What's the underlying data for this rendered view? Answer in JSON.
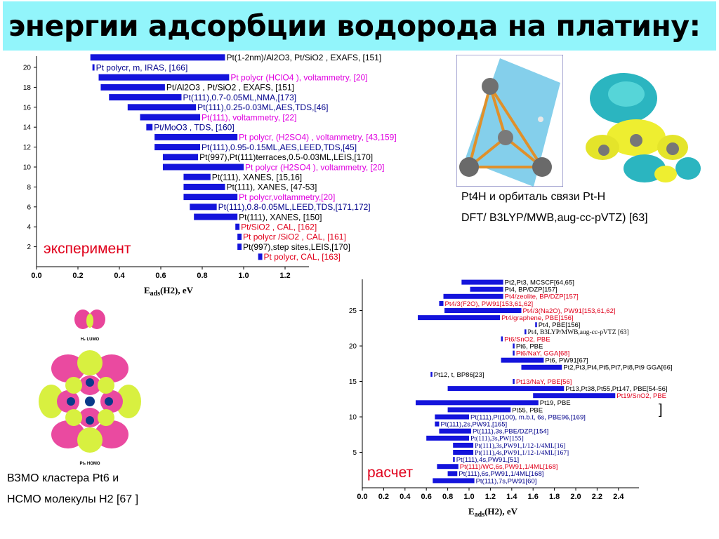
{
  "title": "энергии адсорбции водорода на платину:",
  "colors": {
    "bar": "#1414dc",
    "black": "#000000",
    "magenta": "#e000e0",
    "navy": "#00008b",
    "red": "#e0001b",
    "title_bg": "#92f5fb"
  },
  "exp_label": "эксперимент",
  "calc_label": "расчет",
  "pt4h_caption": {
    "line1": "Pt4H и орбиталь связи Pt-H",
    "line2": "DFT/ B3LYP/MWB,aug-cc-pVTZ) [63]"
  },
  "pt6_caption": {
    "line1": "ВЗМО кластера Pt6 и",
    "line2": "НСМО молекулы H2 [67 ]"
  },
  "orbital_labels": {
    "h2": "H₂ LUMO",
    "pt6": "Pt₆ HOMO"
  },
  "chart_data": [
    {
      "type": "bar",
      "orientation": "horizontal-range",
      "xlabel": "Eads(H2), eV",
      "xlim": [
        0.0,
        1.35
      ],
      "xticks": [
        "0.0",
        "0.2",
        "0.4",
        "0.6",
        "0.8",
        "1.0",
        "1.2"
      ],
      "yticks": [
        "2",
        "4",
        "6",
        "8",
        "10",
        "12",
        "14",
        "16",
        "18",
        "20"
      ],
      "rows": [
        {
          "y": 21,
          "min": 0.26,
          "max": 0.91,
          "label": "Pt(1-2nm)/Al2O3, Pt/SiO2 , EXAFS, [151]",
          "color": "black"
        },
        {
          "y": 20,
          "min": 0.27,
          "max": 0.28,
          "label": "Pt polycr, m, IRAS, [166]",
          "color": "navy"
        },
        {
          "y": 19,
          "min": 0.3,
          "max": 0.93,
          "label": "Pt polycr (HClO4 ), voltammetry, [20]",
          "color": "magenta"
        },
        {
          "y": 18,
          "min": 0.31,
          "max": 0.62,
          "label": "Pt/Al2O3 , Pt/SiO2 , EXAFS, [151]",
          "color": "black"
        },
        {
          "y": 17,
          "min": 0.35,
          "max": 0.7,
          "label": "Pt(111),0.7-0.05ML,NMA,[173]",
          "color": "navy"
        },
        {
          "y": 16,
          "min": 0.44,
          "max": 0.77,
          "label": "Pt(111),0.25-0.03ML,AES,TDS,[46]",
          "color": "navy"
        },
        {
          "y": 15,
          "min": 0.5,
          "max": 0.79,
          "label": "Pt(111), voltammetry, [22]",
          "color": "magenta"
        },
        {
          "y": 14,
          "min": 0.53,
          "max": 0.56,
          "label": "Pt/MoO3 , TDS, [160]",
          "color": "navy"
        },
        {
          "y": 13,
          "min": 0.57,
          "max": 0.97,
          "label": "Pt polycr, (H2SO4) , voltammetry, [43,159]",
          "color": "magenta"
        },
        {
          "y": 12,
          "min": 0.57,
          "max": 0.79,
          "label": "Pt(111),0.95-0.15ML,AES,LEED,TDS,[45]",
          "color": "navy"
        },
        {
          "y": 11,
          "min": 0.61,
          "max": 0.78,
          "label": "Pt(997),Pt(111)terraces,0.5-0.03ML,LEIS,[170]",
          "color": "black"
        },
        {
          "y": 10,
          "min": 0.61,
          "max": 1.0,
          "label": "Pt polycr (H2SO4 ), voltammetry, [20]",
          "color": "magenta"
        },
        {
          "y": 9,
          "min": 0.71,
          "max": 0.84,
          "label": "Pt(111), XANES, [15,16]",
          "color": "black"
        },
        {
          "y": 8,
          "min": 0.71,
          "max": 0.91,
          "label": "Pt(111), XANES, [47-53]",
          "color": "black"
        },
        {
          "y": 7,
          "min": 0.71,
          "max": 0.97,
          "label": "Pt polycr,voltammetry,[20]",
          "color": "magenta"
        },
        {
          "y": 6,
          "min": 0.74,
          "max": 0.87,
          "label": "Pt(111),0.8-0.05ML,LEED,TDS,[171,172]",
          "color": "navy"
        },
        {
          "y": 5,
          "min": 0.76,
          "max": 0.97,
          "label": "Pt(111), XANES, [150]",
          "color": "black"
        },
        {
          "y": 4,
          "min": 0.96,
          "max": 0.98,
          "label": "Pt/SiO2 , CAL, [162]",
          "color": "red"
        },
        {
          "y": 3,
          "min": 0.97,
          "max": 0.99,
          "label": "Pt polycr /SiO2 , CAL, [161]",
          "color": "red"
        },
        {
          "y": 2,
          "min": 0.97,
          "max": 0.99,
          "label": "Pt(997),step sites,LEIS,[170]",
          "color": "black"
        },
        {
          "y": 1,
          "min": 1.07,
          "max": 1.09,
          "label": "Pt polycr, CAL, [163]",
          "color": "red"
        }
      ]
    },
    {
      "type": "bar",
      "orientation": "horizontal-range",
      "xlabel": "Eads(H2), eV",
      "xlim": [
        0.0,
        2.6
      ],
      "xticks": [
        "0.0",
        "0.2",
        "0.4",
        "0.6",
        "0.8",
        "1.0",
        "1.2",
        "1.4",
        "1.6",
        "1.8",
        "2.0",
        "2.2",
        "2.4"
      ],
      "yticks": [
        "5",
        "10",
        "15",
        "20",
        "25"
      ],
      "rows": [
        {
          "y": 29,
          "min": 0.93,
          "max": 1.32,
          "label": "Pt2,Pt3, MCSCF[64,65]",
          "color": "black",
          "font": "sans"
        },
        {
          "y": 28,
          "min": 1.01,
          "max": 1.32,
          "label": "Pt4, BP/DZP[157]",
          "color": "black",
          "font": "sans"
        },
        {
          "y": 27,
          "min": 0.76,
          "max": 1.32,
          "label": "Pt4/zeolite, BP/DZP[157]",
          "color": "red",
          "font": "sans"
        },
        {
          "y": 26,
          "min": 0.72,
          "max": 0.76,
          "label": "Pt4/3(F2O), PW91[153,61,62]",
          "color": "red",
          "font": "sans"
        },
        {
          "y": 25,
          "min": 0.77,
          "max": 1.49,
          "label": "Pt4/3(Na2O), PW91[153,61,62]",
          "color": "red",
          "font": "sans"
        },
        {
          "y": 24,
          "min": 0.52,
          "max": 1.29,
          "label": "Pt4/graphene, PBE[156]",
          "color": "red",
          "font": "sans"
        },
        {
          "y": 23,
          "min": 1.62,
          "max": 1.63,
          "label": "Pt4, PBE[156]",
          "color": "black",
          "font": "sans"
        },
        {
          "y": 22,
          "min": 1.52,
          "max": 1.53,
          "label": "Pt4, B3LYP/MWB,aug-cc-pVTZ [63]",
          "color": "black",
          "font": "serif"
        },
        {
          "y": 21,
          "min": 1.3,
          "max": 1.31,
          "label": "Pt6/SnO2, PBE",
          "color": "red",
          "font": "sans"
        },
        {
          "y": 20,
          "min": 1.41,
          "max": 1.42,
          "label": "Pt6, PBE",
          "color": "black",
          "font": "sans"
        },
        {
          "y": 19,
          "min": 1.41,
          "max": 1.42,
          "label": "Pt6/NaY, GGA[68]",
          "color": "red",
          "font": "sans"
        },
        {
          "y": 18,
          "min": 1.3,
          "max": 1.7,
          "label": "Pt6, PW91[67]",
          "color": "black",
          "font": "sans"
        },
        {
          "y": 17,
          "min": 1.49,
          "max": 1.87,
          "label": "Pt2,Pt3,Pt4,Pt5,Pt7,Pt8,Pt9 GGA[66]",
          "color": "black",
          "font": "sans"
        },
        {
          "y": 16,
          "min": 0.64,
          "max": 0.65,
          "label": "Pt12, t, BP86[23]",
          "color": "black",
          "font": "sans"
        },
        {
          "y": 15,
          "min": 1.41,
          "max": 1.42,
          "label": "Pt13/NaY, PBE[56]",
          "color": "red",
          "font": "sans"
        },
        {
          "y": 14,
          "min": 0.8,
          "max": 1.89,
          "label": "Pt13,Pt38,Pt55,Pt147, PBE[54-56]",
          "color": "black",
          "font": "sans"
        },
        {
          "y": 13,
          "min": 1.6,
          "max": 2.37,
          "label": "Pt19/SnO2, PBE",
          "color": "red",
          "font": "sans"
        },
        {
          "y": 12,
          "min": 0.5,
          "max": 1.65,
          "label": "Pt19, PBE",
          "color": "black",
          "font": "sans"
        },
        {
          "y": 11,
          "min": 0.8,
          "max": 1.39,
          "label": "Pt55, PBE",
          "color": "black",
          "font": "sans"
        },
        {
          "y": 10,
          "min": 0.68,
          "max": 1.0,
          "label": "Pt(111),Pt(100), m.b.t, 6s, PBE96,[169]",
          "color": "navy",
          "font": "sans"
        },
        {
          "y": 9,
          "min": 0.68,
          "max": 0.72,
          "label": "Pt(111),2s,PW91,[165]",
          "color": "navy",
          "font": "sans"
        },
        {
          "y": 8,
          "min": 0.72,
          "max": 1.02,
          "label": "Pt(111),3s,PBE/DZP,[154]",
          "color": "navy",
          "font": "sans"
        },
        {
          "y": 7,
          "min": 0.6,
          "max": 1.0,
          "label": "Pt(111),3s,PW[155]",
          "color": "navy",
          "font": "serif"
        },
        {
          "y": 6,
          "min": 0.85,
          "max": 1.04,
          "label": "Pt(111),3s,PW91,1/12-1/4ML[16]",
          "color": "navy",
          "font": "serif"
        },
        {
          "y": 5,
          "min": 0.85,
          "max": 1.04,
          "label": "Pt(111),4s,PW91,1/12-1/4ML[167]",
          "color": "navy",
          "font": "serif"
        },
        {
          "y": 4,
          "min": 0.85,
          "max": 0.86,
          "label": "Pt(111),4s,PW91,[51]",
          "color": "navy",
          "font": "sans"
        },
        {
          "y": 3,
          "min": 0.7,
          "max": 0.9,
          "label": "Pt(111)/WC,6s,PW91,1/4ML[168]",
          "color": "red",
          "font": "sans"
        },
        {
          "y": 2,
          "min": 0.8,
          "max": 0.89,
          "label": "Pt(111),6s,PW91,1/4ML[168]",
          "color": "navy",
          "font": "sans"
        },
        {
          "y": 1,
          "min": 0.66,
          "max": 1.05,
          "label": "Pt(111),7s,PW91[60]",
          "color": "navy",
          "font": "sans"
        }
      ]
    }
  ]
}
